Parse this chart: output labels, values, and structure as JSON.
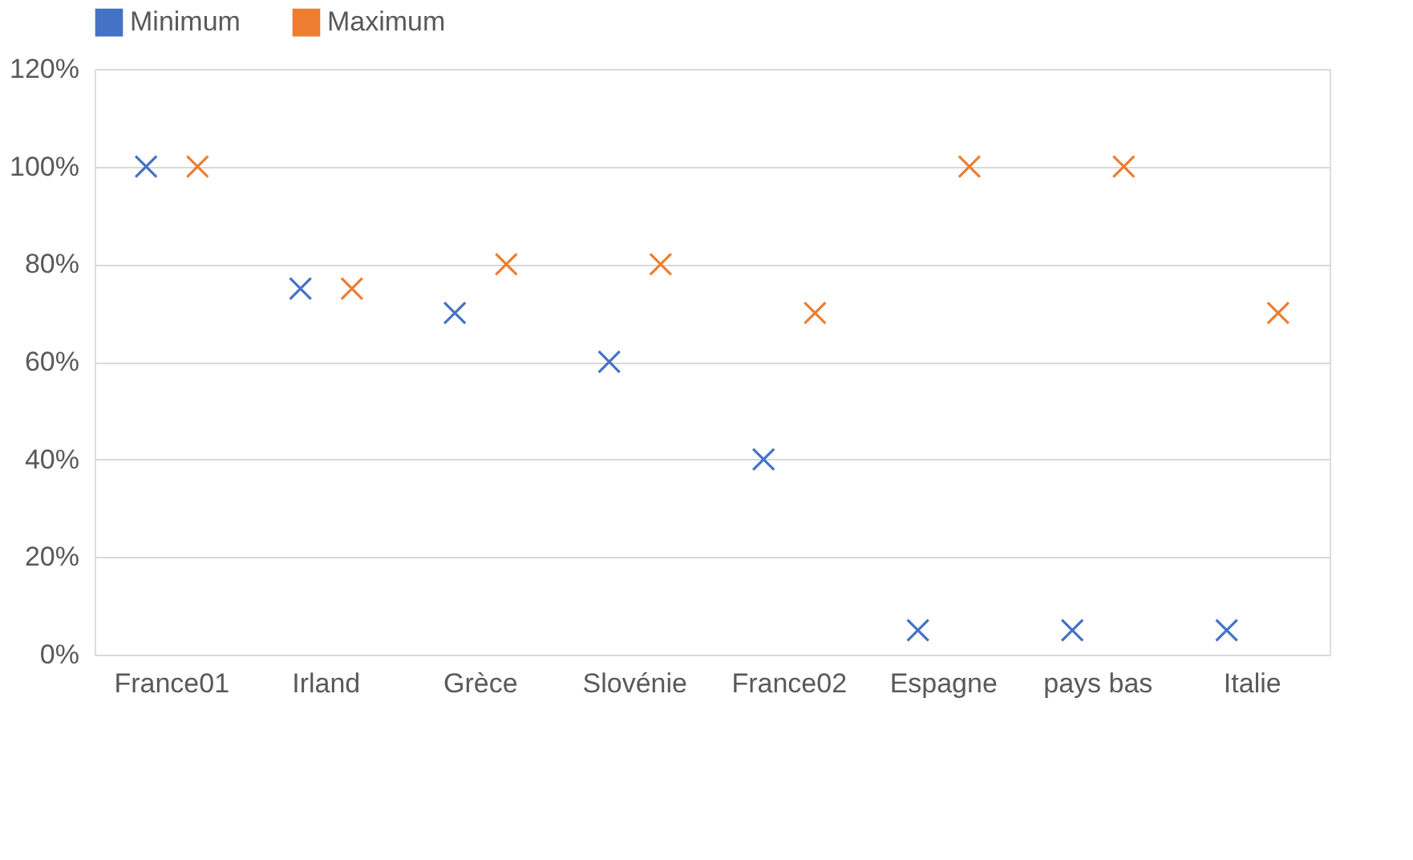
{
  "chart_data": {
    "type": "scatter",
    "categories": [
      "France01",
      "Irland",
      "Grèce",
      "Slovénie",
      "France02",
      "Espagne",
      "pays bas",
      "Italie"
    ],
    "series": [
      {
        "name": "Minimum",
        "color": "#4472c4",
        "values": [
          100,
          75,
          70,
          60,
          40,
          5,
          5,
          5
        ]
      },
      {
        "name": "Maximum",
        "color": "#ed7d31",
        "values": [
          100,
          75,
          80,
          80,
          70,
          100,
          100,
          70
        ]
      }
    ],
    "ylim": [
      0,
      120
    ],
    "yticks": [
      {
        "value": 0,
        "label": "0%"
      },
      {
        "value": 20,
        "label": "20%"
      },
      {
        "value": 40,
        "label": "40%"
      },
      {
        "value": 60,
        "label": "60%"
      },
      {
        "value": 80,
        "label": "80%"
      },
      {
        "value": 100,
        "label": "100%"
      },
      {
        "value": 120,
        "label": "120%"
      }
    ],
    "grid": "y",
    "legend": "top",
    "marker": "cross"
  }
}
